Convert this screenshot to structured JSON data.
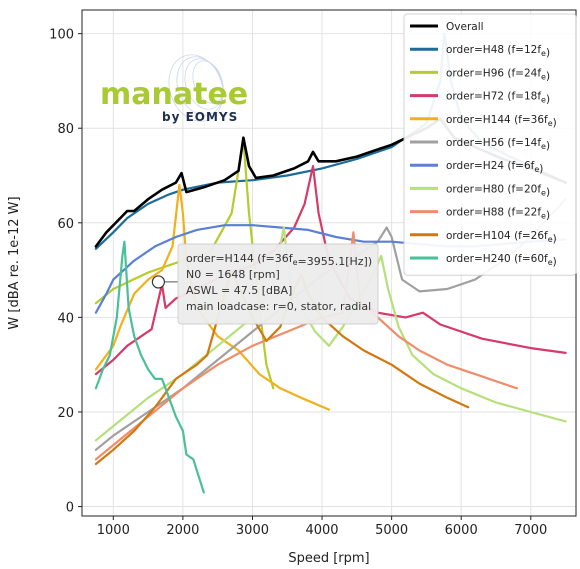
{
  "chart_data": {
    "type": "line",
    "title": "",
    "xlabel": "Speed [rpm]",
    "ylabel": "W [dBA re. 1e-12 W]",
    "xlim": [
      550,
      7650
    ],
    "ylim": [
      -2,
      105
    ],
    "xticks": [
      1000,
      2000,
      3000,
      4000,
      5000,
      6000,
      7000
    ],
    "yticks": [
      0,
      20,
      40,
      60,
      80,
      100
    ],
    "grid": true,
    "legend_position": "top-right",
    "series": [
      {
        "name": "Overall",
        "color": "#000000",
        "points": [
          [
            750,
            55
          ],
          [
            900,
            58
          ],
          [
            1100,
            61
          ],
          [
            1200,
            62.5
          ],
          [
            1300,
            62.5
          ],
          [
            1500,
            65
          ],
          [
            1700,
            67
          ],
          [
            1900,
            68.5
          ],
          [
            1980,
            70.5
          ],
          [
            2050,
            66.5
          ],
          [
            2300,
            67.5
          ],
          [
            2600,
            69
          ],
          [
            2800,
            71
          ],
          [
            2870,
            78
          ],
          [
            2950,
            72
          ],
          [
            3050,
            69.5
          ],
          [
            3300,
            70
          ],
          [
            3600,
            71.5
          ],
          [
            3800,
            73
          ],
          [
            3870,
            75
          ],
          [
            3950,
            73
          ],
          [
            4200,
            73
          ],
          [
            4500,
            74
          ],
          [
            5000,
            76.5
          ],
          [
            5500,
            80
          ],
          [
            5700,
            82
          ],
          [
            5900,
            78
          ],
          [
            6200,
            76
          ],
          [
            6600,
            73.5
          ],
          [
            7000,
            71.5
          ],
          [
            7500,
            68.5
          ]
        ]
      },
      {
        "name": "order=H48 (f=12f_e)",
        "color": "#1b6c9a",
        "points": [
          [
            750,
            54.5
          ],
          [
            1000,
            58
          ],
          [
            1200,
            61
          ],
          [
            1500,
            64
          ],
          [
            1800,
            66
          ],
          [
            2000,
            67
          ],
          [
            2500,
            68.5
          ],
          [
            3000,
            69
          ],
          [
            3500,
            70
          ],
          [
            4000,
            71.5
          ],
          [
            4500,
            73.5
          ],
          [
            5000,
            76
          ],
          [
            5500,
            81
          ],
          [
            5700,
            90
          ],
          [
            5760,
            100
          ],
          [
            5850,
            90
          ],
          [
            6000,
            82
          ],
          [
            6300,
            77
          ],
          [
            6700,
            74
          ],
          [
            7000,
            72
          ],
          [
            7500,
            68.5
          ]
        ]
      },
      {
        "name": "order=H96 (f=24f_e)",
        "color": "#b5cc2c",
        "points": [
          [
            750,
            43
          ],
          [
            1000,
            46
          ],
          [
            1500,
            49.5
          ],
          [
            2000,
            52
          ],
          [
            2400,
            54
          ],
          [
            2700,
            62
          ],
          [
            2870,
            77.5
          ],
          [
            2950,
            62
          ],
          [
            3100,
            42
          ],
          [
            3200,
            30
          ],
          [
            3300,
            25
          ]
        ]
      },
      {
        "name": "order=H72 (f=18f_e)",
        "color": "#d63a69",
        "points": [
          [
            750,
            28
          ],
          [
            1000,
            31
          ],
          [
            1200,
            34
          ],
          [
            1400,
            36
          ],
          [
            1550,
            37.5
          ],
          [
            1700,
            47
          ],
          [
            1750,
            42
          ],
          [
            1900,
            44
          ],
          [
            2200,
            46
          ],
          [
            2600,
            49
          ],
          [
            3000,
            51
          ],
          [
            3300,
            54
          ],
          [
            3600,
            59
          ],
          [
            3750,
            64
          ],
          [
            3870,
            72
          ],
          [
            3950,
            62
          ],
          [
            4100,
            52
          ],
          [
            4400,
            44
          ],
          [
            4800,
            41
          ],
          [
            5200,
            40
          ],
          [
            5450,
            41
          ],
          [
            5700,
            38.5
          ],
          [
            6300,
            35.5
          ],
          [
            7000,
            33.5
          ],
          [
            7500,
            32.5
          ]
        ]
      },
      {
        "name": "order=H144 (f=36f_e)",
        "color": "#f2b01b",
        "points": [
          [
            750,
            29
          ],
          [
            900,
            32
          ],
          [
            1000,
            34
          ],
          [
            1100,
            38
          ],
          [
            1300,
            45
          ],
          [
            1500,
            48
          ],
          [
            1700,
            50
          ],
          [
            1850,
            55
          ],
          [
            1950,
            68
          ],
          [
            2000,
            62
          ],
          [
            2050,
            52
          ],
          [
            2200,
            42
          ],
          [
            2500,
            36
          ],
          [
            2800,
            33
          ],
          [
            3100,
            28
          ],
          [
            3400,
            25
          ],
          [
            3700,
            23
          ],
          [
            4100,
            20.5
          ]
        ]
      },
      {
        "name": "order=H56 (f=14f_e)",
        "color": "#a0a0a0",
        "points": [
          [
            750,
            12
          ],
          [
            1000,
            15
          ],
          [
            1500,
            20
          ],
          [
            2000,
            25
          ],
          [
            2500,
            31
          ],
          [
            3000,
            37
          ],
          [
            3500,
            43
          ],
          [
            4000,
            49
          ],
          [
            4500,
            53
          ],
          [
            4800,
            56
          ],
          [
            4930,
            59
          ],
          [
            5000,
            57
          ],
          [
            5150,
            48
          ],
          [
            5400,
            45.5
          ],
          [
            5800,
            46
          ],
          [
            6200,
            48
          ],
          [
            6600,
            52
          ],
          [
            7000,
            57
          ],
          [
            7500,
            65
          ]
        ]
      },
      {
        "name": "order=H24 (f=6f_e)",
        "color": "#5b7fd4",
        "points": [
          [
            750,
            41
          ],
          [
            900,
            45
          ],
          [
            1000,
            48
          ],
          [
            1300,
            52
          ],
          [
            1600,
            55
          ],
          [
            1900,
            57
          ],
          [
            2200,
            58.5
          ],
          [
            2600,
            59.5
          ],
          [
            3000,
            59.5
          ],
          [
            3400,
            59
          ],
          [
            3800,
            58.5
          ],
          [
            4200,
            57
          ],
          [
            4600,
            56
          ],
          [
            5000,
            56
          ],
          [
            5400,
            55.5
          ],
          [
            5800,
            55
          ],
          [
            6200,
            55
          ],
          [
            6600,
            55.5
          ],
          [
            7000,
            56
          ],
          [
            7500,
            56.5
          ]
        ]
      },
      {
        "name": "order=H80 (f=20f_e)",
        "color": "#b5e07a",
        "points": [
          [
            750,
            14
          ],
          [
            1000,
            17
          ],
          [
            1500,
            23
          ],
          [
            2000,
            28
          ],
          [
            2500,
            34
          ],
          [
            3000,
            40
          ],
          [
            3300,
            47
          ],
          [
            3450,
            59
          ],
          [
            3550,
            47
          ],
          [
            3700,
            42
          ],
          [
            3900,
            37
          ],
          [
            4100,
            34
          ],
          [
            4300,
            38
          ],
          [
            4500,
            43
          ],
          [
            4700,
            48
          ],
          [
            4850,
            53
          ],
          [
            4950,
            46
          ],
          [
            5100,
            38
          ],
          [
            5300,
            32
          ],
          [
            5600,
            28
          ],
          [
            6000,
            25
          ],
          [
            6500,
            22
          ],
          [
            7000,
            20
          ],
          [
            7500,
            18
          ]
        ]
      },
      {
        "name": "order=H88 (f=22f_e)",
        "color": "#f08c6a",
        "points": [
          [
            750,
            10
          ],
          [
            1000,
            13
          ],
          [
            1500,
            19
          ],
          [
            2000,
            25
          ],
          [
            2500,
            30
          ],
          [
            3000,
            34
          ],
          [
            3500,
            37
          ],
          [
            4000,
            40
          ],
          [
            4300,
            41
          ],
          [
            4450,
            58
          ],
          [
            4550,
            43
          ],
          [
            4800,
            40
          ],
          [
            5100,
            36
          ],
          [
            5400,
            33
          ],
          [
            5800,
            30
          ],
          [
            6200,
            28
          ],
          [
            6600,
            26
          ],
          [
            6800,
            25
          ]
        ]
      },
      {
        "name": "order=H104 (f=26f_e)",
        "color": "#d2780e",
        "points": [
          [
            750,
            9
          ],
          [
            1000,
            12
          ],
          [
            1300,
            16
          ],
          [
            1600,
            21
          ],
          [
            1900,
            27
          ],
          [
            2200,
            30
          ],
          [
            2350,
            32
          ],
          [
            2600,
            45
          ],
          [
            2700,
            50
          ],
          [
            2850,
            45
          ],
          [
            3000,
            40
          ],
          [
            3200,
            35
          ],
          [
            3400,
            38
          ],
          [
            3600,
            46
          ],
          [
            3700,
            49
          ],
          [
            3800,
            45
          ],
          [
            4000,
            40
          ],
          [
            4300,
            36
          ],
          [
            4600,
            33
          ],
          [
            5000,
            30
          ],
          [
            5400,
            26
          ],
          [
            5800,
            23
          ],
          [
            6100,
            21
          ]
        ]
      },
      {
        "name": "order=H240 (f=60f_e)",
        "color": "#49c09a",
        "points": [
          [
            750,
            25
          ],
          [
            850,
            29
          ],
          [
            950,
            32
          ],
          [
            1050,
            40
          ],
          [
            1130,
            53
          ],
          [
            1160,
            56
          ],
          [
            1220,
            42
          ],
          [
            1300,
            36
          ],
          [
            1400,
            32
          ],
          [
            1500,
            29
          ],
          [
            1600,
            27
          ],
          [
            1700,
            27
          ],
          [
            1800,
            23
          ],
          [
            1900,
            19
          ],
          [
            2000,
            16
          ],
          [
            2050,
            11
          ],
          [
            2150,
            10
          ],
          [
            2300,
            3
          ]
        ]
      }
    ],
    "tooltip": {
      "lines": [
        "order=H144 (f=36f_e=3955.1[Hz])",
        "N0 = 1648 [rpm]",
        "ASWL = 47.5 [dBA]",
        "main loadcase: r=0, stator, radial"
      ],
      "marker": [
        1648,
        47.5
      ]
    }
  },
  "logo": {
    "word": "manatee",
    "by": "by EOMYS"
  }
}
